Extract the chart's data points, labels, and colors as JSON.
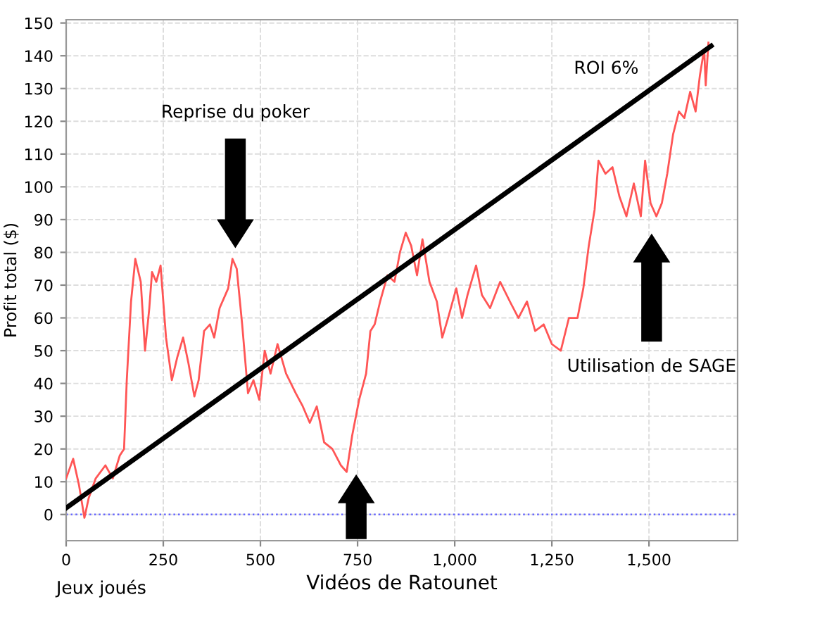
{
  "chart_data": {
    "type": "line",
    "xlabel": "Vidéos de Ratounet",
    "ylabel": "Profit total ($)",
    "xlim": [
      0,
      1728
    ],
    "ylim": [
      -8,
      151
    ],
    "xticks": [
      0,
      250,
      500,
      750,
      {
        "value": 1000,
        "label": "1,000"
      },
      {
        "value": 1250,
        "label": "1,250"
      },
      {
        "value": 1500,
        "label": "1,500"
      }
    ],
    "yticks": [
      0,
      10,
      20,
      30,
      40,
      50,
      60,
      70,
      80,
      90,
      100,
      110,
      120,
      130,
      140,
      150
    ],
    "grid": true,
    "legend": false,
    "marker": "none",
    "line_style": "solid",
    "series": [
      {
        "color": "#ff5555",
        "x": [
          0,
          18,
          33,
          47,
          58,
          76,
          101,
          120,
          138,
          149,
          156,
          167,
          178,
          192,
          203,
          214,
          221,
          232,
          243,
          257,
          272,
          286,
          301,
          315,
          330,
          341,
          355,
          370,
          381,
          395,
          417,
          428,
          439,
          453,
          468,
          482,
          497,
          511,
          526,
          544,
          566,
          591,
          609,
          627,
          645,
          664,
          685,
          707,
          722,
          736,
          754,
          772,
          783,
          794,
          808,
          827,
          845,
          859,
          874,
          888,
          903,
          917,
          935,
          954,
          968,
          983,
          1004,
          1019,
          1033,
          1055,
          1070,
          1091,
          1117,
          1142,
          1164,
          1186,
          1207,
          1229,
          1250,
          1273,
          1294,
          1316,
          1331,
          1345,
          1360,
          1370,
          1388,
          1406,
          1424,
          1442,
          1461,
          1479,
          1490,
          1504,
          1519,
          1533,
          1547,
          1562,
          1577,
          1591,
          1606,
          1620,
          1631,
          1642,
          1646,
          1653
        ],
        "values": [
          11,
          17,
          9,
          -1,
          5,
          11,
          15,
          11,
          18,
          20,
          41,
          65,
          78,
          71,
          50,
          63,
          74,
          71,
          76,
          54,
          41,
          48,
          54,
          46,
          36,
          41,
          56,
          58,
          54,
          63,
          69,
          78,
          75,
          58,
          37,
          41,
          35,
          50,
          43,
          52,
          43,
          37,
          33,
          28,
          33,
          22,
          20,
          15,
          13,
          24,
          35,
          43,
          56,
          58,
          65,
          73,
          71,
          80,
          86,
          82,
          73,
          84,
          71,
          65,
          54,
          60,
          69,
          60,
          67,
          76,
          67,
          63,
          71,
          65,
          60,
          65,
          56,
          58,
          52,
          50,
          60,
          60,
          69,
          82,
          93,
          108,
          104,
          106,
          97,
          91,
          101,
          91,
          108,
          95,
          91,
          95,
          104,
          116,
          123,
          121,
          129,
          123,
          134,
          142,
          131,
          144
        ]
      },
      {
        "name": "ROI 6%",
        "color": "#000000",
        "x": [
          0,
          1660
        ],
        "values": [
          2,
          143
        ]
      }
    ],
    "ref_lines": [
      {
        "axis": "y",
        "value": 0,
        "color": "#6666ff",
        "line_style": "dotted"
      }
    ],
    "annotations": [
      "Reprise du poker",
      "Utilisation de SAGE",
      "Jeux joués"
    ]
  }
}
